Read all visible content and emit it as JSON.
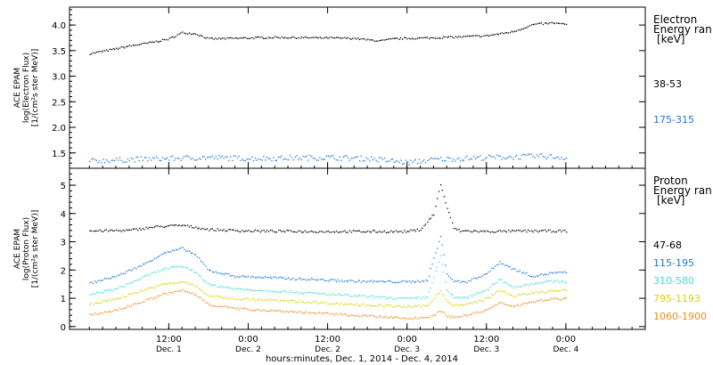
{
  "x_axis": {
    "title": "hours:minutes, Dec.  1, 2014 - Dec.  4, 2014",
    "ticks": [
      {
        "t": 12,
        "time": "12:00",
        "date": "Dec. 1"
      },
      {
        "t": 24,
        "time": "0:00",
        "date": "Dec. 2"
      },
      {
        "t": 36,
        "time": "12:00",
        "date": "Dec. 2"
      },
      {
        "t": 48,
        "time": "0:00",
        "date": "Dec. 3"
      },
      {
        "t": 60,
        "time": "12:00",
        "date": "Dec. 3"
      },
      {
        "t": 72,
        "time": "0:00",
        "date": "Dec. 4"
      }
    ]
  },
  "chart_data": [
    {
      "type": "scatter",
      "panel": "electron",
      "ylabel": [
        "ACE EPAM",
        "log(Electron Flux)",
        "[1/(cm²s ster MeV)]"
      ],
      "ylim": [
        1.2,
        4.35
      ],
      "yticks": [
        1.5,
        2.0,
        2.5,
        3.0,
        3.5,
        4.0
      ],
      "ytick_labels": [
        "1.5",
        "2.0",
        "2.5",
        "3.0",
        "3.5",
        "4.0"
      ],
      "legend_title": [
        "Electron",
        "Energy ran",
        "[keV]"
      ],
      "series": [
        {
          "name": "38-53",
          "color": "#000000",
          "x": [
            0,
            3,
            6,
            9,
            12,
            14,
            16,
            18,
            22,
            28,
            34,
            40,
            42,
            44,
            46,
            48,
            52,
            56,
            60,
            64,
            67,
            70,
            72
          ],
          "y": [
            3.45,
            3.52,
            3.6,
            3.66,
            3.74,
            3.86,
            3.84,
            3.74,
            3.75,
            3.77,
            3.76,
            3.75,
            3.72,
            3.7,
            3.74,
            3.75,
            3.76,
            3.78,
            3.8,
            3.88,
            4.02,
            4.05,
            4.02
          ]
        },
        {
          "name": "175-315",
          "color": "#1f77d4",
          "x": [
            0,
            6,
            12,
            18,
            24,
            30,
            36,
            42,
            46,
            48,
            52,
            56,
            60,
            64,
            68,
            72
          ],
          "y": [
            1.35,
            1.38,
            1.4,
            1.42,
            1.4,
            1.41,
            1.42,
            1.4,
            1.35,
            1.32,
            1.38,
            1.4,
            1.42,
            1.43,
            1.45,
            1.42
          ]
        }
      ]
    },
    {
      "type": "scatter",
      "panel": "proton",
      "ylabel": [
        "ACE EPAM",
        "log(Proton Flux)",
        "[1/(cm²s ster MeV)]"
      ],
      "ylim": [
        -0.1,
        5.6
      ],
      "yticks": [
        0,
        1,
        2,
        3,
        4,
        5
      ],
      "ytick_labels": [
        "0",
        "1",
        "2",
        "3",
        "4",
        "5"
      ],
      "legend_title": [
        "Proton",
        "Energy ran",
        "[keV]"
      ],
      "series": [
        {
          "name": "47-68",
          "color": "#000000",
          "x": [
            0,
            6,
            10,
            14,
            18,
            24,
            36,
            48,
            50,
            52,
            53,
            54,
            55,
            56,
            57,
            60,
            66,
            72
          ],
          "y": [
            3.4,
            3.42,
            3.55,
            3.6,
            3.45,
            3.4,
            3.38,
            3.38,
            3.45,
            4.0,
            5.05,
            4.2,
            3.5,
            3.4,
            3.4,
            3.38,
            3.4,
            3.4
          ]
        },
        {
          "name": "115-195",
          "color": "#1f77d4",
          "x": [
            0,
            4,
            8,
            11,
            14,
            16,
            18,
            22,
            30,
            40,
            48,
            51,
            53,
            54,
            55,
            57,
            60,
            62,
            64,
            67,
            70,
            72
          ],
          "y": [
            1.55,
            1.8,
            2.2,
            2.6,
            2.78,
            2.55,
            2.0,
            1.8,
            1.72,
            1.62,
            1.6,
            1.65,
            3.2,
            1.9,
            1.62,
            1.6,
            1.9,
            2.3,
            2.05,
            1.8,
            1.92,
            1.92
          ]
        },
        {
          "name": "310-580",
          "color": "#40e0d0",
          "x": [
            0,
            4,
            8,
            11,
            14,
            16,
            18,
            22,
            30,
            40,
            48,
            51,
            53,
            54,
            55,
            57,
            60,
            62,
            64,
            67,
            70,
            72
          ],
          "y": [
            1.15,
            1.35,
            1.75,
            2.05,
            2.15,
            1.95,
            1.5,
            1.35,
            1.25,
            1.1,
            1.0,
            1.05,
            2.5,
            1.3,
            1.05,
            1.05,
            1.3,
            1.7,
            1.4,
            1.55,
            1.62,
            1.6
          ]
        },
        {
          "name": "795-1193",
          "color": "#d4d400",
          "x": [
            0,
            4,
            8,
            11,
            14,
            16,
            18,
            22,
            30,
            40,
            48,
            51,
            53,
            54,
            55,
            57,
            60,
            62,
            64,
            67,
            70,
            72
          ],
          "y": [
            0.8,
            1.0,
            1.3,
            1.5,
            1.6,
            1.45,
            1.1,
            1.0,
            0.92,
            0.8,
            0.72,
            0.75,
            1.3,
            0.9,
            0.75,
            0.8,
            1.0,
            1.3,
            1.1,
            1.2,
            1.28,
            1.3
          ]
        },
        {
          "name": "1060-1900",
          "color": "#f08c1e",
          "x": [
            0,
            4,
            8,
            11,
            14,
            16,
            18,
            22,
            30,
            40,
            48,
            51,
            53,
            54,
            55,
            57,
            60,
            62,
            64,
            67,
            70,
            72
          ],
          "y": [
            0.42,
            0.6,
            0.9,
            1.15,
            1.3,
            1.15,
            0.8,
            0.65,
            0.55,
            0.42,
            0.3,
            0.35,
            0.55,
            0.4,
            0.35,
            0.42,
            0.6,
            0.85,
            0.75,
            0.9,
            1.0,
            1.0
          ]
        }
      ]
    }
  ]
}
